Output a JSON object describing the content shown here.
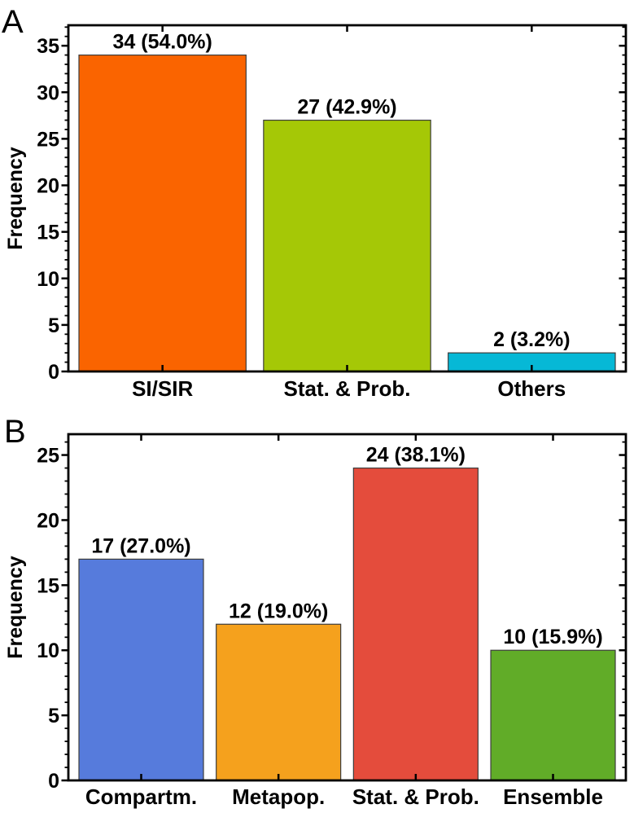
{
  "figure_title": "",
  "chart_data": [
    {
      "type": "bar",
      "panel_label": "A",
      "title": "",
      "xlabel": "",
      "ylabel": "Frequency",
      "categories": [
        "SI/SIR",
        "Stat. & Prob.",
        "Others"
      ],
      "values": [
        34,
        27,
        2
      ],
      "bar_labels": [
        "34 (54.0%)",
        "27 (42.9%)",
        "2 (3.2%)"
      ],
      "colors": [
        "#FA6400",
        "#A5C806",
        "#06B8D6"
      ],
      "ylim": [
        0,
        37.2
      ],
      "ytick_step": 5,
      "yminor_step": 1,
      "ytick_labels": [
        "0",
        "5",
        "10",
        "15",
        "20",
        "25",
        "30",
        "35"
      ],
      "grid": false,
      "legend": null
    },
    {
      "type": "bar",
      "panel_label": "B",
      "title": "",
      "xlabel": "",
      "ylabel": "Frequency",
      "categories": [
        "Compartm.",
        "Metapop.",
        "Stat. & Prob.",
        "Ensemble"
      ],
      "values": [
        17,
        12,
        24,
        10
      ],
      "bar_labels": [
        "17 (27.0%)",
        "12 (19.0%)",
        "24 (38.1%)",
        "10 (15.9%)"
      ],
      "colors": [
        "#567BDC",
        "#F5A11D",
        "#E44C3C",
        "#61AC28"
      ],
      "ylim": [
        0,
        26.6
      ],
      "ytick_step": 5,
      "yminor_step": 1,
      "ytick_labels": [
        "0",
        "5",
        "10",
        "15",
        "20",
        "25"
      ],
      "grid": false,
      "legend": null
    }
  ]
}
